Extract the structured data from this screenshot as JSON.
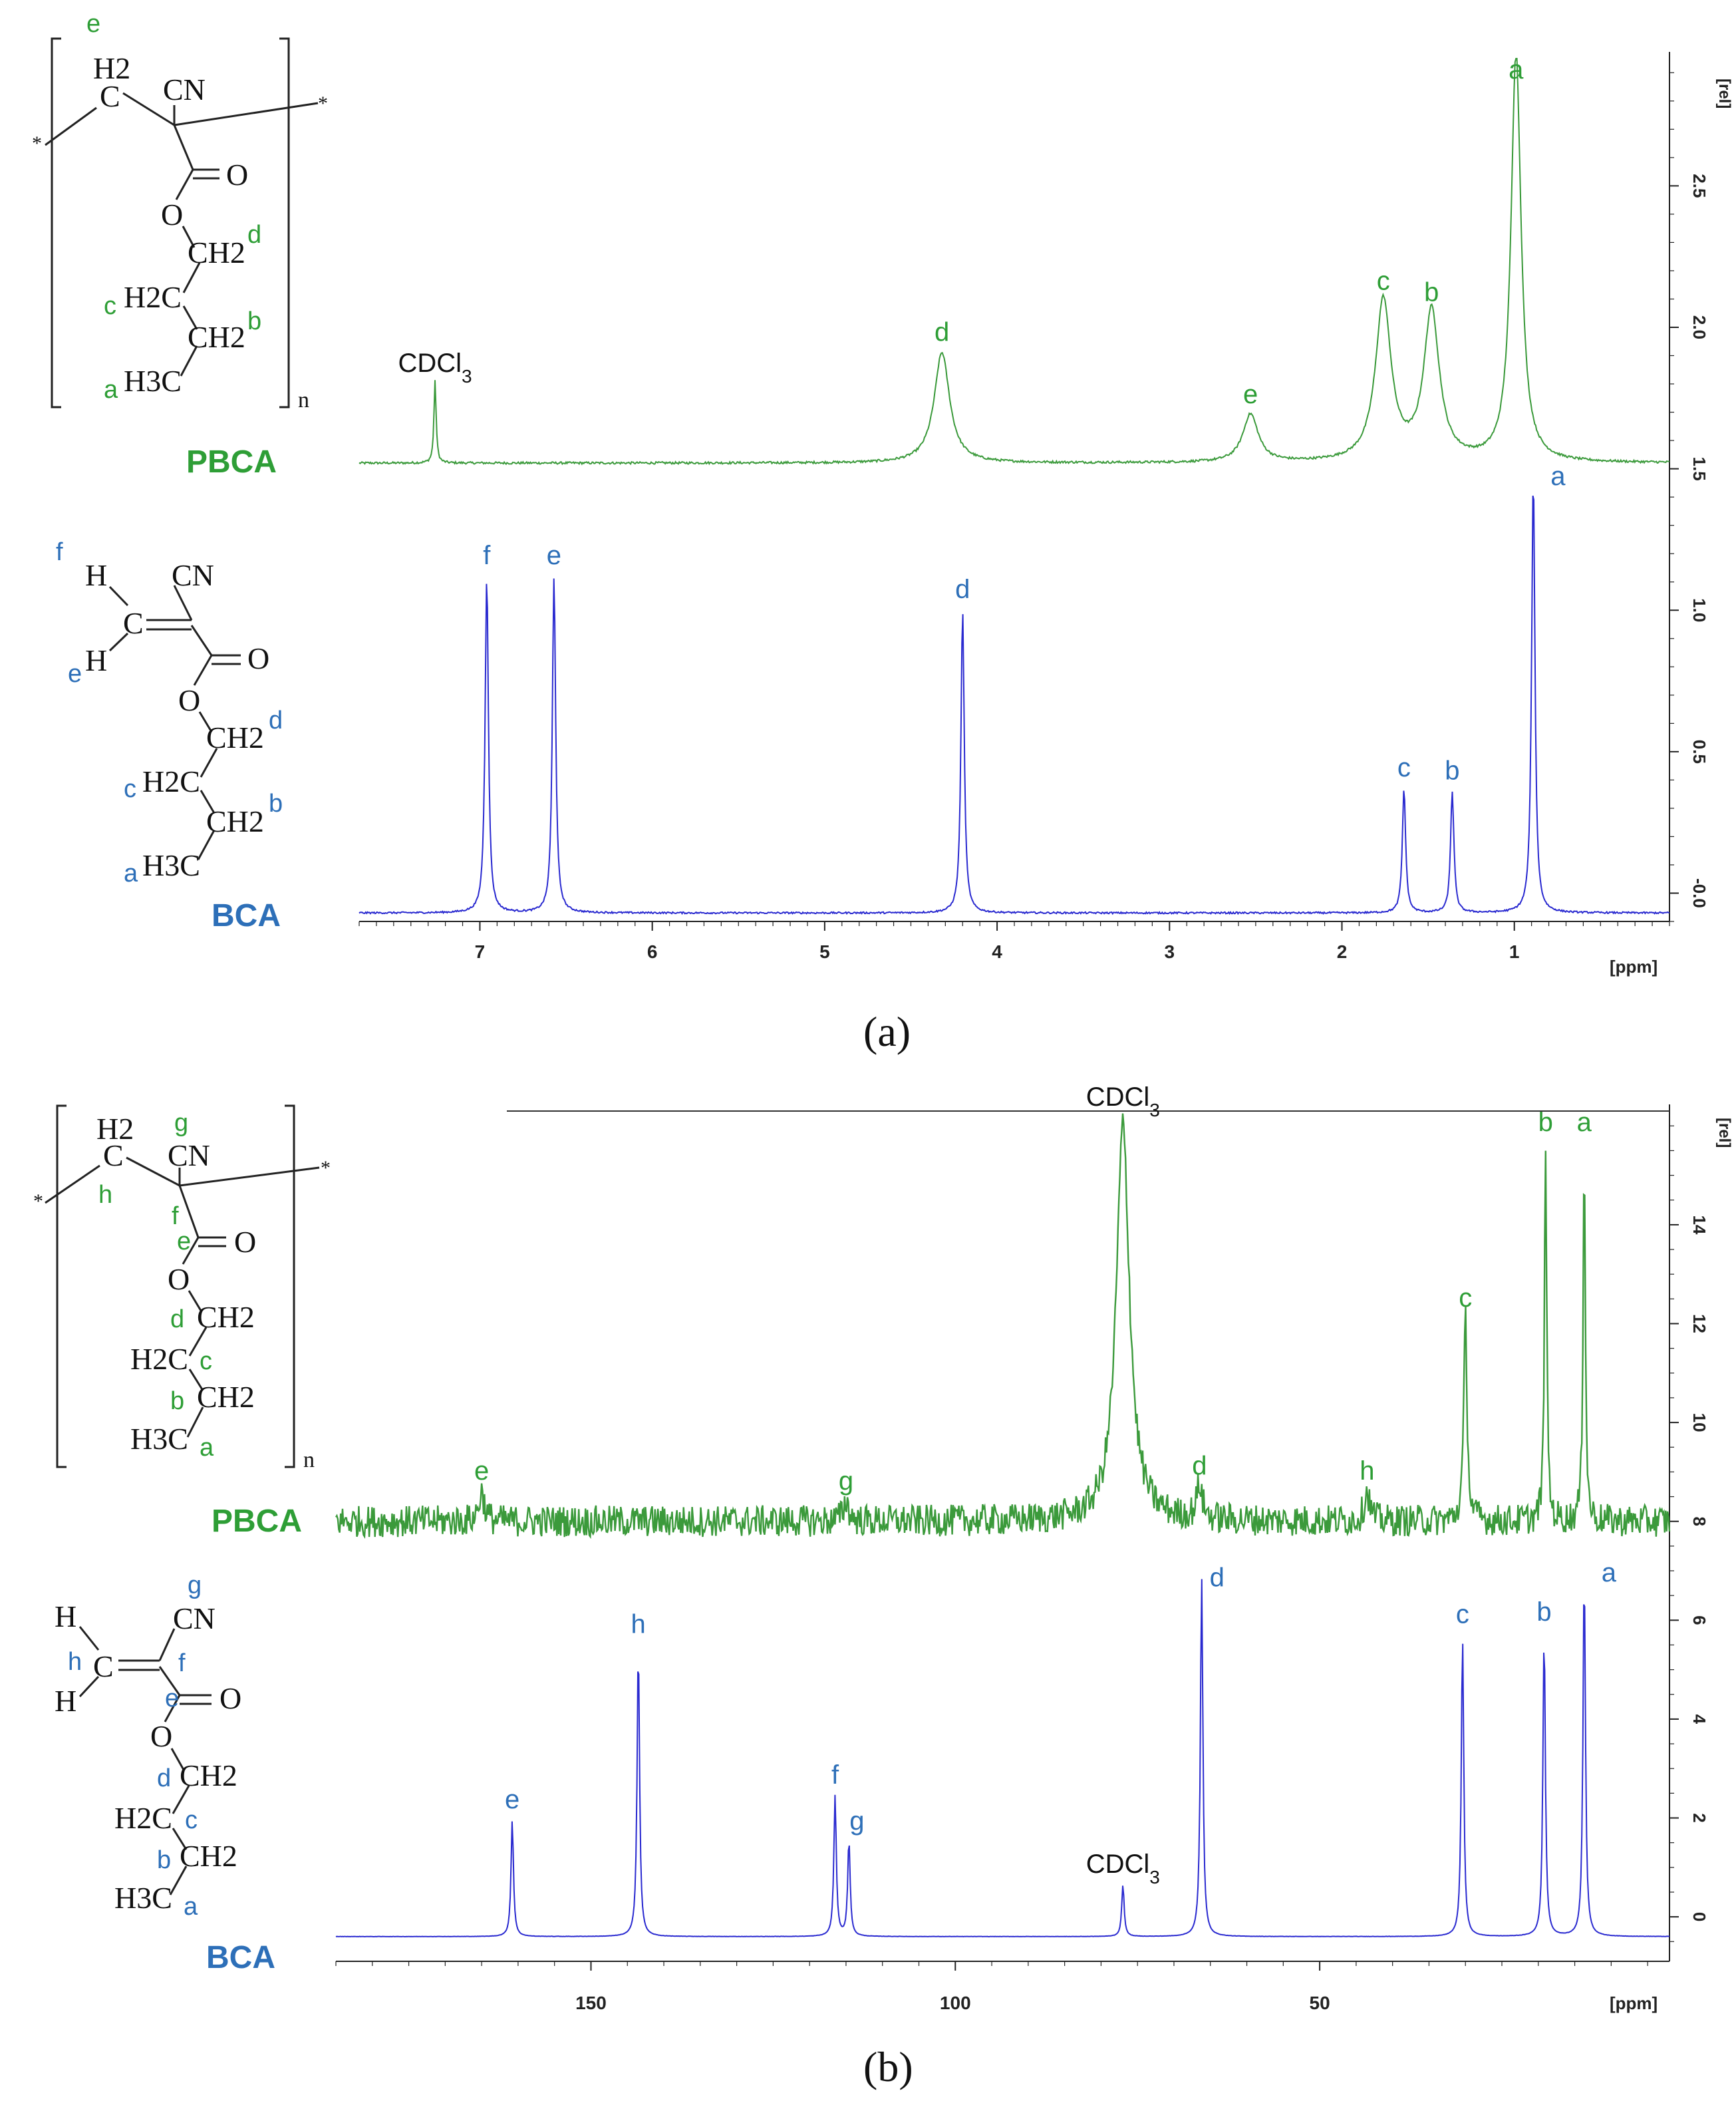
{
  "colors": {
    "pbca": "#2e9e36",
    "bca": "#2d6fb8",
    "bca_line": "#2a2ad0",
    "pbca_line": "#3b9a3b",
    "axis": "#222222"
  },
  "panel_a": {
    "label": "(a)",
    "units_x": "[ppm]",
    "units_y": "[rel]",
    "pbca_name": "PBCA",
    "bca_name": "BCA",
    "solvent": "CDCl3",
    "pbca_struct": {
      "ch2": "H2",
      "c": "C",
      "cn": "CN",
      "o_dbl": "O",
      "o": "O",
      "ch2d": "CH2",
      "h2c": "H2C",
      "ch2b": "CH2",
      "h3c": "H3C",
      "n": "n",
      "star": "*"
    },
    "bca_struct": {
      "h1": "H",
      "h2": "H",
      "c": "C",
      "cn": "CN",
      "o_dbl": "O",
      "o": "O",
      "ch2d": "CH2",
      "h2c": "H2C",
      "ch2b": "CH2",
      "h3c": "H3C"
    }
  },
  "panel_b": {
    "label": "(b)",
    "units_x": "[ppm]",
    "units_y": "[rel]",
    "pbca_name": "PBCA",
    "bca_name": "BCA",
    "solvent": "CDCl3",
    "pbca_struct": {
      "h2": "H2",
      "c": "C",
      "cn": "CN",
      "o_dbl": "O",
      "o": "O",
      "ch2d": "CH2",
      "h2c": "H2C",
      "ch2b": "CH2",
      "h3c": "H3C",
      "n": "n",
      "star": "*"
    },
    "bca_struct": {
      "h1": "H",
      "h2": "H",
      "c": "C",
      "cn": "CN",
      "o_dbl": "O",
      "o": "O",
      "ch2d": "CH2",
      "h2c": "H2C",
      "ch2b": "CH2",
      "h3c": "H3C"
    }
  },
  "chart_data": [
    {
      "type": "line",
      "panel": "a",
      "xlabel": "[ppm]",
      "ylabel": "[rel]",
      "xlim": [
        7.7,
        0.1
      ],
      "ylim": [
        -0.1,
        2.95
      ],
      "x_ticks": [
        7,
        6,
        5,
        4,
        3,
        2,
        1
      ],
      "y_ticks": [
        -0.0,
        0.5,
        1.0,
        1.5,
        2.0,
        2.5
      ],
      "y_tick_labels": [
        "-0.0",
        "0.5",
        "1.0",
        "1.5",
        "2.0",
        "2.5"
      ],
      "series": [
        {
          "name": "PBCA",
          "baseline": 1.52,
          "peaks": [
            {
              "label": "CDCl3",
              "x": 7.26,
              "y": 1.81
            },
            {
              "label": "d",
              "x": 4.32,
              "y": 1.91
            },
            {
              "label": "e",
              "x": 2.53,
              "y": 1.69
            },
            {
              "label": "c",
              "x": 1.76,
              "y": 2.09
            },
            {
              "label": "b",
              "x": 1.48,
              "y": 2.05
            },
            {
              "label": "a",
              "x": 0.99,
              "y": 2.97
            }
          ]
        },
        {
          "name": "BCA",
          "baseline": -0.07,
          "peaks": [
            {
              "label": "f",
              "x": 6.96,
              "y": 1.12
            },
            {
              "label": "e",
              "x": 6.57,
              "y": 1.12
            },
            {
              "label": "d",
              "x": 4.2,
              "y": 1.0
            },
            {
              "label": "c",
              "x": 1.64,
              "y": 0.37
            },
            {
              "label": "b",
              "x": 1.36,
              "y": 0.36
            },
            {
              "label": "a",
              "x": 0.89,
              "y": 1.48
            }
          ]
        }
      ]
    },
    {
      "type": "line",
      "panel": "b",
      "xlabel": "[ppm]",
      "ylabel": "[rel]",
      "xlim": [
        185,
        2
      ],
      "ylim": [
        -0.9,
        16.3
      ],
      "x_ticks": [
        150,
        100,
        50
      ],
      "y_ticks": [
        0,
        2,
        4,
        6,
        8,
        10,
        12,
        14
      ],
      "y_tick_labels": [
        "0",
        "2",
        "4",
        "6",
        "8",
        "10",
        "12",
        "14"
      ],
      "series": [
        {
          "name": "PBCA",
          "baseline": 8.0,
          "peaks": [
            {
              "label": "CDCl3",
              "x": 77.0,
              "y": 16.0
            },
            {
              "label": "e",
              "x": 165.0,
              "y": 8.6
            },
            {
              "label": "g",
              "x": 115.0,
              "y": 8.4
            },
            {
              "label": "d",
              "x": 66.5,
              "y": 8.7
            },
            {
              "label": "h",
              "x": 43.5,
              "y": 8.6
            },
            {
              "label": "c",
              "x": 30.0,
              "y": 12.1
            },
            {
              "label": "b",
              "x": 19.0,
              "y": 15.8
            },
            {
              "label": "a",
              "x": 13.7,
              "y": 15.7
            }
          ]
        },
        {
          "name": "BCA",
          "baseline": -0.4,
          "peaks": [
            {
              "label": "e",
              "x": 160.8,
              "y": 1.95
            },
            {
              "label": "h",
              "x": 143.5,
              "y": 5.5
            },
            {
              "label": "f",
              "x": 116.5,
              "y": 2.45
            },
            {
              "label": "g",
              "x": 114.6,
              "y": 1.55
            },
            {
              "label": "CDCl3",
              "x": 77.0,
              "y": 0.65
            },
            {
              "label": "d",
              "x": 66.2,
              "y": 6.9
            },
            {
              "label": "c",
              "x": 30.4,
              "y": 5.7
            },
            {
              "label": "b",
              "x": 19.2,
              "y": 5.75
            },
            {
              "label": "a",
              "x": 13.7,
              "y": 7.0
            }
          ]
        }
      ]
    }
  ]
}
